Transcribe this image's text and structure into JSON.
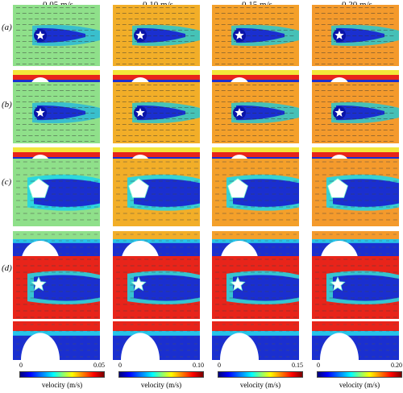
{
  "columns": [
    {
      "title": "0.05 m/s",
      "max_label": "0.05",
      "bg": "#6ed79a"
    },
    {
      "title": "0.10 m/s",
      "max_label": "0.10",
      "bg": "#f2ae28"
    },
    {
      "title": "0.15 m/s",
      "max_label": "0.15",
      "bg": "#f4a02a"
    },
    {
      "title": "0.20 m/s",
      "max_label": "0.20",
      "bg": "#f49a2c"
    }
  ],
  "rows": [
    {
      "label": "(a)"
    },
    {
      "label": "(b)"
    },
    {
      "label": "(c)"
    },
    {
      "label": "(d)"
    }
  ],
  "colorbar": {
    "min_label": "0",
    "unit_label": "velocity (m/s)"
  },
  "colors": {
    "wake_blue": "#1a2fd0",
    "deep_blue": "#0a14a8",
    "cyan": "#26c4e8",
    "red_band": "#e8241a",
    "yellow": "#f3e63a"
  }
}
